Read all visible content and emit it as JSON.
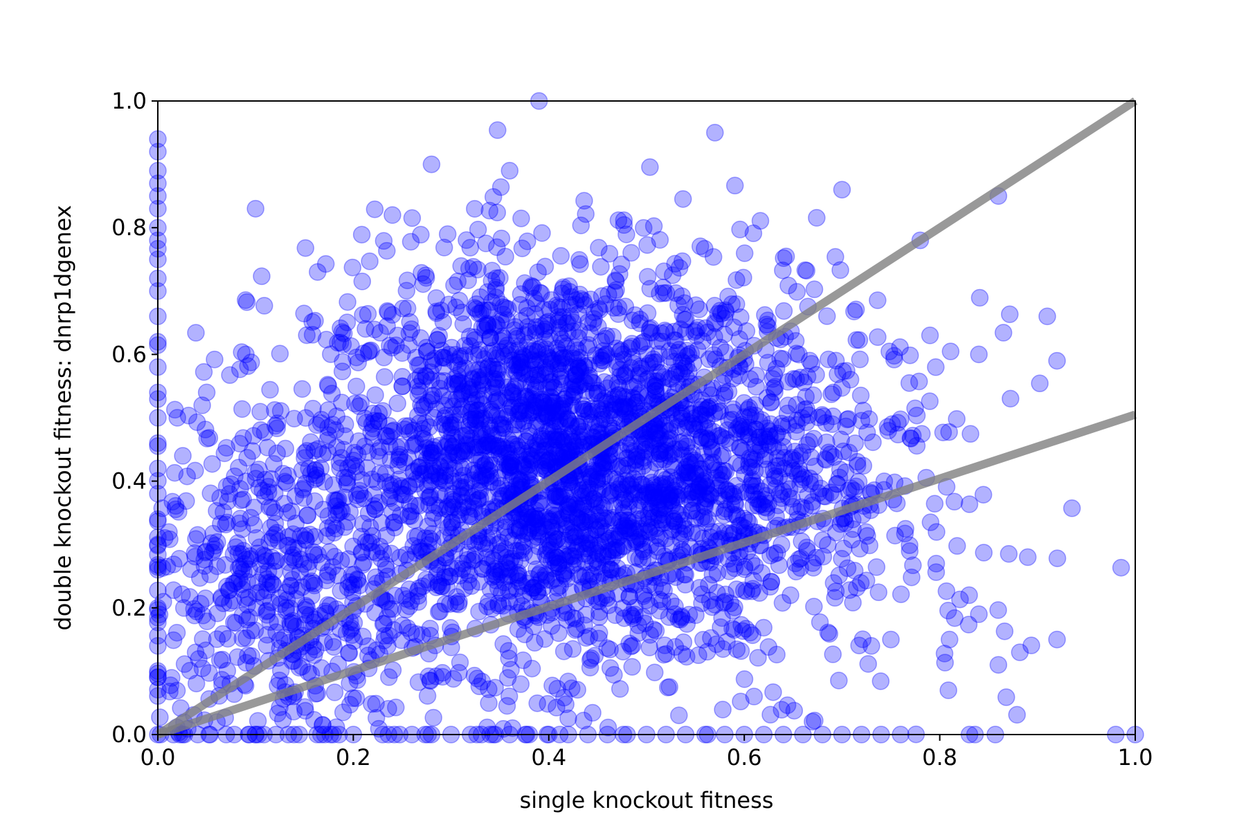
{
  "chart_data": {
    "type": "scatter",
    "xlabel": "single knockout fitness",
    "ylabel": "double knockout fitness: dnrp1dgenex",
    "xlim": [
      0.0,
      1.0
    ],
    "ylim": [
      0.0,
      1.0
    ],
    "x_ticks": [
      "0.0",
      "0.2",
      "0.4",
      "0.6",
      "0.8",
      "1.0"
    ],
    "y_ticks": [
      "0.0",
      "0.2",
      "0.4",
      "0.6",
      "0.8",
      "1.0"
    ],
    "grid": false,
    "legend": "none",
    "marker_color": "#0000ff",
    "line_color": "#808080",
    "reference_lines": [
      {
        "x": [
          0.0,
          1.0
        ],
        "y": [
          0.0,
          1.0
        ]
      },
      {
        "x": [
          0.0,
          1.0
        ],
        "y": [
          0.0,
          0.505
        ]
      }
    ],
    "clusters": [
      {
        "cx": 0.4,
        "cy": 0.43,
        "sx": 0.12,
        "sy": 0.16,
        "n": 2600
      },
      {
        "cx": 0.12,
        "cy": 0.22,
        "sx": 0.07,
        "sy": 0.14,
        "n": 500
      },
      {
        "cx": 0.6,
        "cy": 0.4,
        "sx": 0.09,
        "sy": 0.15,
        "n": 500
      },
      {
        "cx": 0.8,
        "cy": 0.35,
        "sx": 0.07,
        "sy": 0.16,
        "n": 60
      }
    ],
    "series": [
      {
        "x": [
          0.0,
          0.0,
          0.0,
          0.0,
          0.0,
          0.0,
          0.0,
          0.0,
          0.0,
          0.0,
          0.0,
          0.0,
          0.0,
          0.0,
          0.0,
          0.0,
          0.0,
          0.0,
          0.0,
          0.0,
          0.0,
          0.0,
          0.0,
          0.0
        ],
        "y": [
          0.94,
          0.92,
          0.89,
          0.87,
          0.85,
          0.83,
          0.8,
          0.78,
          0.75,
          0.72,
          0.7,
          0.66,
          0.62,
          0.58,
          0.54,
          0.5,
          0.46,
          0.42,
          0.38,
          0.34,
          0.3,
          0.26,
          0.2,
          0.14
        ]
      },
      {
        "x": [
          0.2,
          0.23,
          0.26,
          0.28,
          0.3,
          0.32,
          0.34,
          0.36,
          0.38,
          0.4,
          0.42,
          0.44,
          0.46,
          0.48,
          0.5,
          0.52,
          0.54,
          0.56,
          0.58,
          0.6,
          0.62,
          0.64,
          0.66,
          0.68,
          0.7,
          0.72,
          0.74,
          0.76,
          0.98,
          1.0
        ],
        "y": [
          0.0,
          0.0,
          0.0,
          0.0,
          0.0,
          0.0,
          0.0,
          0.0,
          0.0,
          0.0,
          0.0,
          0.0,
          0.0,
          0.0,
          0.0,
          0.0,
          0.0,
          0.0,
          0.0,
          0.0,
          0.0,
          0.0,
          0.0,
          0.0,
          0.0,
          0.0,
          0.0,
          0.0,
          0.0,
          0.0
        ]
      },
      {
        "x": [
          0.39,
          0.57,
          0.1,
          0.24,
          0.28,
          0.36,
          0.86,
          0.7,
          0.91,
          0.92,
          0.84,
          0.79,
          0.89,
          0.86,
          0.84,
          0.92,
          0.83,
          0.81,
          0.73,
          0.78,
          0.05,
          0.02,
          0.09,
          0.61,
          0.75
        ],
        "y": [
          1.0,
          0.95,
          0.83,
          0.82,
          0.9,
          0.89,
          0.85,
          0.86,
          0.66,
          0.59,
          0.6,
          0.63,
          0.28,
          0.11,
          0.19,
          0.15,
          0.22,
          0.15,
          0.14,
          0.78,
          0.54,
          0.5,
          0.6,
          0.06,
          0.15
        ]
      }
    ]
  }
}
